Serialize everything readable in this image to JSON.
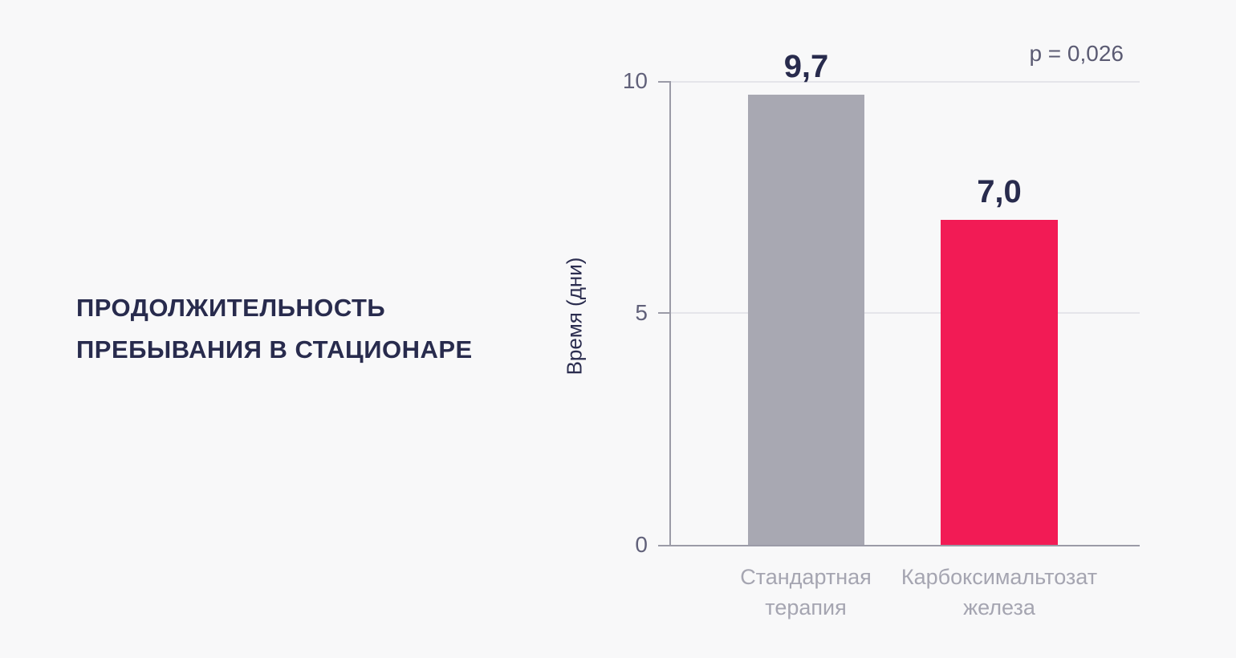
{
  "background": "#f8f8f9",
  "title": {
    "line1": "ПРОДОЛЖИТЕЛЬНОСТЬ",
    "line2": "ПРЕБЫВАНИЯ В СТАЦИОНАРЕ"
  },
  "chart_data": {
    "type": "bar",
    "title": "ПРОДОЛЖИТЕЛЬНОСТЬ ПРЕБЫВАНИЯ В СТАЦИОНАРЕ",
    "categories": [
      "Стандартная терапия",
      "Карбоксимальтозат железа"
    ],
    "category_lines": [
      [
        "Стандартная",
        "терапия"
      ],
      [
        "Карбоксимальтозат",
        "железа"
      ]
    ],
    "values": [
      9.7,
      7.0
    ],
    "value_labels": [
      "9,7",
      "7,0"
    ],
    "bar_colors": [
      "#a8a8b2",
      "#f21b55"
    ],
    "value_label_color": "#282b4d",
    "xlabel": "",
    "ylabel": "Время (дни)",
    "ylim": [
      0,
      10
    ],
    "yticks": [
      0,
      5,
      10
    ],
    "grid": true,
    "legend": false,
    "annotation": "p = 0,026"
  },
  "colors": {
    "background": "#f8f8f9",
    "title_text": "#282b4d",
    "axis_line": "#9b9ba7",
    "gridline": "#e5e5ea",
    "tick_label": "#61617a",
    "category_label": "#a5a5b1",
    "p_value_text": "#5b5b73",
    "bar_gray": "#a8a8b2",
    "bar_pink": "#f21b55"
  }
}
